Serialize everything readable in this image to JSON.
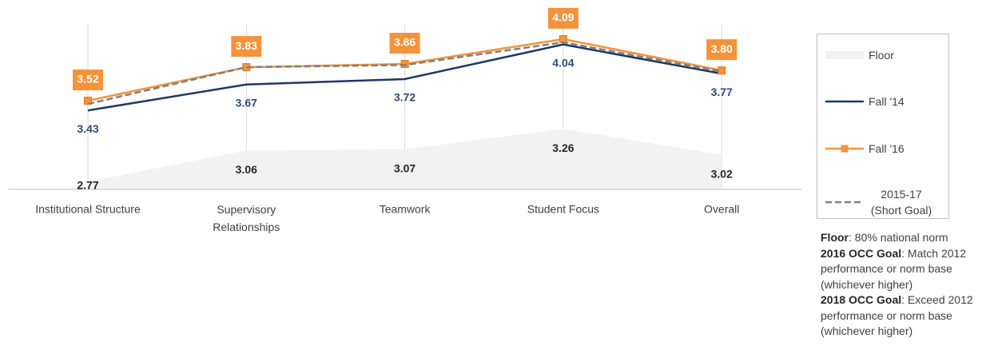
{
  "chart_data": {
    "type": "line",
    "categories": [
      "Institutional Structure",
      "Supervisory Relationships",
      "Teamwork",
      "Student Focus",
      "Overall"
    ],
    "series": [
      {
        "name": "Floor",
        "style": "area",
        "color": "#f2f2f2",
        "label_color": "#262626",
        "values": [
          2.77,
          3.06,
          3.07,
          3.26,
          3.02
        ]
      },
      {
        "name": "Fall '14",
        "style": "line",
        "color": "#1f3864",
        "label_color": "#2e4a7d",
        "values": [
          3.43,
          3.67,
          3.72,
          4.04,
          3.77
        ]
      },
      {
        "name": "Fall '16",
        "style": "line",
        "marker": "square",
        "color": "#f4933a",
        "label_color": "#ffffff",
        "values": [
          3.52,
          3.83,
          3.86,
          4.09,
          3.8
        ],
        "value_labels": [
          "3.52",
          "3.83",
          "3.86",
          "4.09",
          "3.80"
        ]
      },
      {
        "name": "2015-17 (Short Goal)",
        "style": "dashed",
        "color": "#808080",
        "values": [
          3.49,
          3.83,
          3.85,
          4.06,
          3.79
        ]
      }
    ],
    "ylim": [
      2.7,
      4.2
    ],
    "xgrid": true
  },
  "notes": [
    {
      "term": "Floor",
      "text": ": 80% national norm"
    },
    {
      "term": "2016 OCC Goal",
      "text": ": Match 2012 performance or norm base (whichever higher)"
    },
    {
      "term": "2018 OCC Goal",
      "text": ": Exceed 2012 performance or norm base (whichever higher)"
    }
  ]
}
